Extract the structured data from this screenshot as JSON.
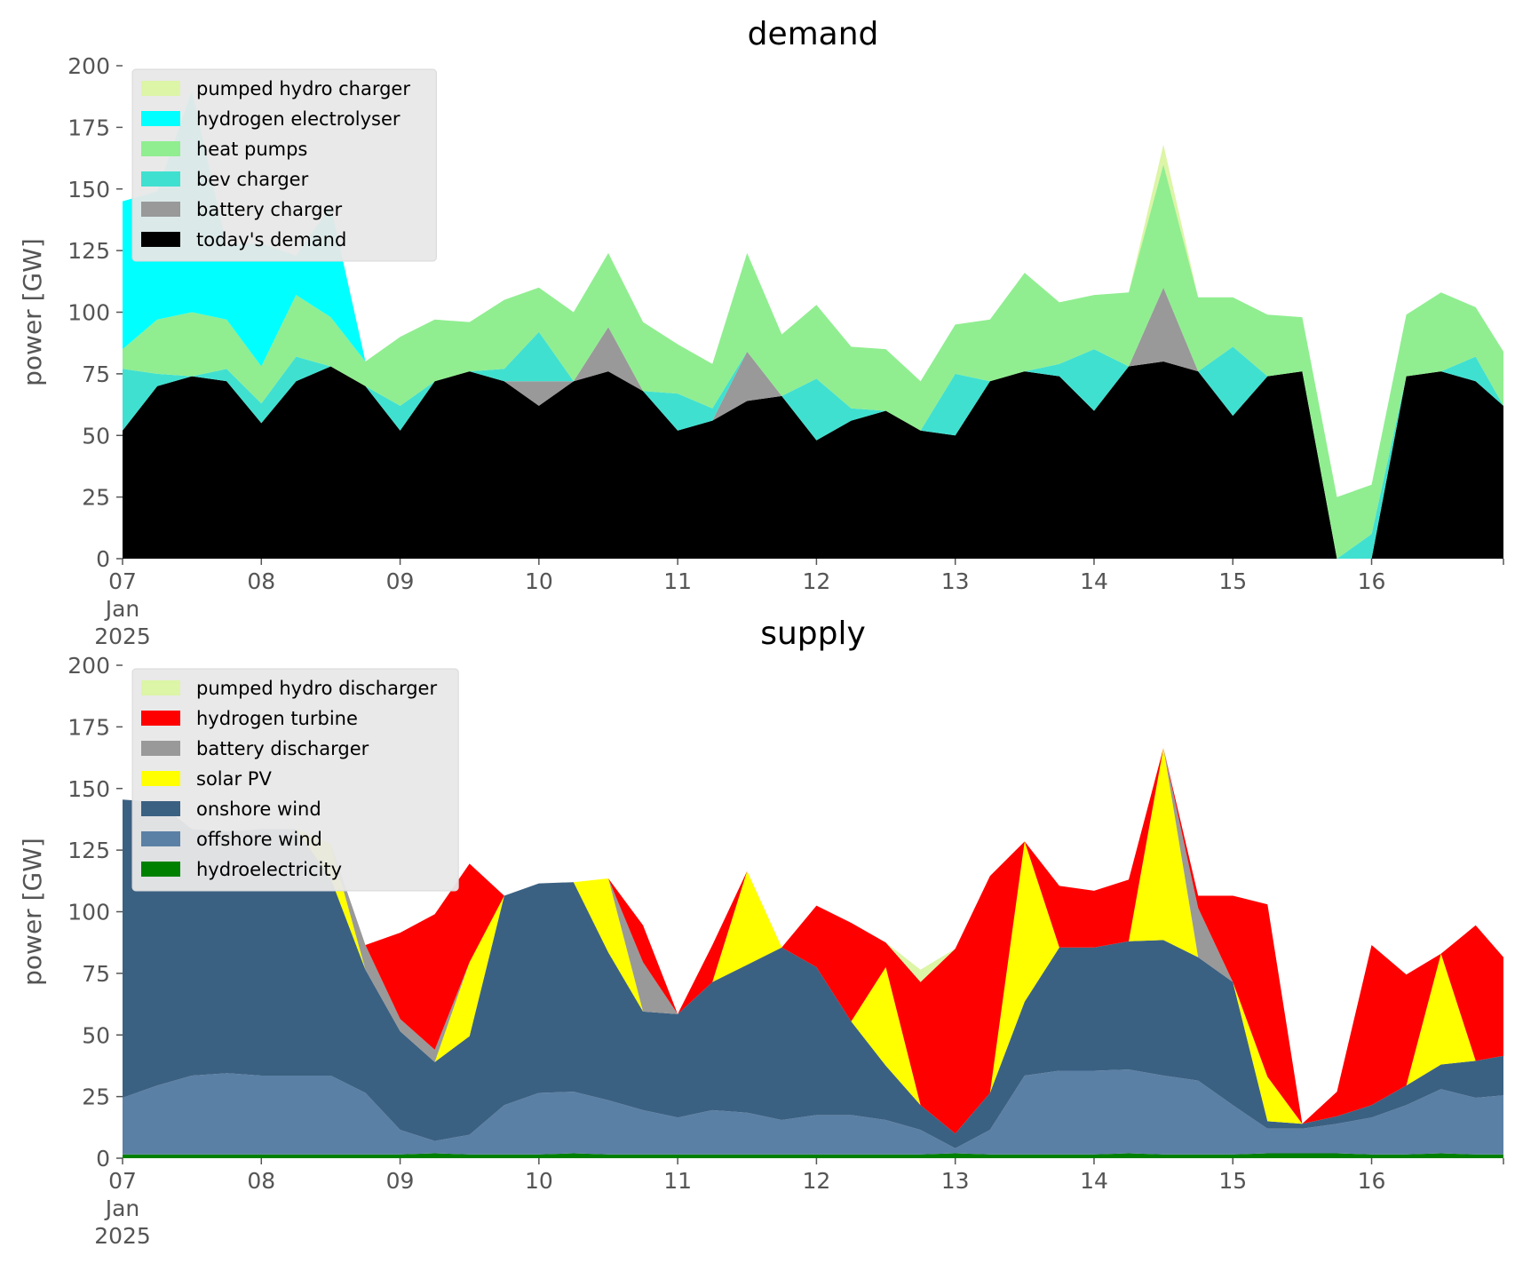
{
  "chart_data": [
    {
      "type": "area",
      "stacked": true,
      "title": "demand",
      "ylabel": "power [GW]",
      "ylim": [
        0,
        200
      ],
      "yticks": [
        "0",
        "25",
        "50",
        "75",
        "100",
        "125",
        "150",
        "175",
        "200"
      ],
      "xlim": [
        0,
        9.95
      ],
      "xticks": [
        {
          "value": 0,
          "lines": [
            "07",
            "Jan",
            "2025"
          ]
        },
        {
          "value": 1,
          "lines": [
            "08"
          ]
        },
        {
          "value": 2,
          "lines": [
            "09"
          ]
        },
        {
          "value": 3,
          "lines": [
            "10"
          ]
        },
        {
          "value": 4,
          "lines": [
            "11"
          ]
        },
        {
          "value": 5,
          "lines": [
            "12"
          ]
        },
        {
          "value": 6,
          "lines": [
            "13"
          ]
        },
        {
          "value": 7,
          "lines": [
            "14"
          ]
        },
        {
          "value": 8,
          "lines": [
            "15"
          ]
        },
        {
          "value": 9,
          "lines": [
            "16"
          ]
        }
      ],
      "legend_position": "top-left",
      "legend_order": [
        "pumped hydro charger",
        "hydrogen electrolyser",
        "heat pumps",
        "bev charger",
        "battery charger",
        "today's demand"
      ],
      "x": [
        0,
        0.25,
        0.5,
        0.75,
        1,
        1.25,
        1.5,
        1.75,
        2,
        2.25,
        2.5,
        2.75,
        3,
        3.25,
        3.5,
        3.75,
        4,
        4.25,
        4.5,
        4.75,
        5,
        5.25,
        5.5,
        5.75,
        6,
        6.25,
        6.5,
        6.75,
        7,
        7.25,
        7.5,
        7.75,
        8,
        8.25,
        8.5,
        8.75,
        9,
        9.25,
        9.5,
        9.75,
        9.95
      ],
      "series": [
        {
          "name": "today's demand",
          "color": "#000000",
          "values": [
            52,
            70,
            74,
            72,
            55,
            72,
            78,
            70,
            52,
            72,
            76,
            72,
            62,
            72,
            76,
            68,
            52,
            56,
            64,
            66,
            48,
            56,
            60,
            52,
            50,
            72,
            76,
            74,
            60,
            78,
            80,
            76,
            58,
            74,
            76,
            0,
            0,
            74,
            76,
            72,
            62
          ]
        },
        {
          "name": "battery charger",
          "color": "#999999",
          "values": [
            0,
            0,
            0,
            0,
            0,
            0,
            0,
            0,
            0,
            0,
            0,
            0,
            10,
            0,
            18,
            0,
            0,
            0,
            20,
            0,
            0,
            0,
            0,
            0,
            0,
            0,
            0,
            0,
            0,
            0,
            30,
            0,
            0,
            0,
            0,
            0,
            0,
            0,
            0,
            0,
            0
          ]
        },
        {
          "name": "bev charger",
          "color": "#40e0d0",
          "values": [
            25,
            5,
            0,
            5,
            8,
            10,
            0,
            0,
            10,
            0,
            0,
            5,
            20,
            0,
            0,
            0,
            15,
            5,
            0,
            0,
            25,
            5,
            0,
            0,
            25,
            0,
            0,
            5,
            25,
            0,
            0,
            0,
            28,
            0,
            0,
            0,
            10,
            0,
            0,
            10,
            0
          ]
        },
        {
          "name": "heat pumps",
          "color": "#90ee90",
          "values": [
            8,
            22,
            26,
            20,
            15,
            25,
            20,
            10,
            28,
            25,
            20,
            28,
            18,
            28,
            30,
            28,
            20,
            18,
            40,
            25,
            30,
            25,
            25,
            20,
            20,
            25,
            40,
            25,
            22,
            30,
            50,
            30,
            20,
            25,
            22,
            25,
            20,
            25,
            32,
            20,
            22
          ]
        },
        {
          "name": "hydrogen electrolyser",
          "color": "#00ffff",
          "values": [
            60,
            52,
            90,
            30,
            50,
            16,
            45,
            0,
            0,
            0,
            0,
            0,
            0,
            0,
            0,
            0,
            0,
            0,
            0,
            0,
            0,
            0,
            0,
            0,
            0,
            0,
            0,
            0,
            0,
            0,
            0,
            0,
            0,
            0,
            0,
            0,
            0,
            0,
            0,
            0,
            0
          ]
        },
        {
          "name": "pumped hydro charger",
          "color": "#dcf5a6",
          "values": [
            0,
            0,
            0,
            0,
            0,
            0,
            0,
            0,
            0,
            0,
            0,
            0,
            0,
            0,
            0,
            0,
            0,
            0,
            0,
            0,
            0,
            0,
            0,
            0,
            0,
            0,
            0,
            0,
            0,
            0,
            8,
            0,
            0,
            0,
            0,
            0,
            0,
            0,
            0,
            0,
            0
          ]
        }
      ]
    },
    {
      "type": "area",
      "stacked": true,
      "title": "supply",
      "ylabel": "power [GW]",
      "ylim": [
        0,
        200
      ],
      "yticks": [
        "0",
        "25",
        "50",
        "75",
        "100",
        "125",
        "150",
        "175",
        "200"
      ],
      "xlim": [
        0,
        9.95
      ],
      "xticks": [
        {
          "value": 0,
          "lines": [
            "07",
            "Jan",
            "2025"
          ]
        },
        {
          "value": 1,
          "lines": [
            "08"
          ]
        },
        {
          "value": 2,
          "lines": [
            "09"
          ]
        },
        {
          "value": 3,
          "lines": [
            "10"
          ]
        },
        {
          "value": 4,
          "lines": [
            "11"
          ]
        },
        {
          "value": 5,
          "lines": [
            "12"
          ]
        },
        {
          "value": 6,
          "lines": [
            "13"
          ]
        },
        {
          "value": 7,
          "lines": [
            "14"
          ]
        },
        {
          "value": 8,
          "lines": [
            "15"
          ]
        },
        {
          "value": 9,
          "lines": [
            "16"
          ]
        }
      ],
      "legend_position": "top-left",
      "legend_order": [
        "pumped hydro discharger",
        "hydrogen turbine",
        "battery discharger",
        "solar PV",
        "onshore wind",
        "offshore wind",
        "hydroelectricity"
      ],
      "x": [
        0,
        0.25,
        0.5,
        0.75,
        1,
        1.25,
        1.5,
        1.75,
        2,
        2.25,
        2.5,
        2.75,
        3,
        3.25,
        3.5,
        3.75,
        4,
        4.25,
        4.5,
        4.75,
        5,
        5.25,
        5.5,
        5.75,
        6,
        6.25,
        6.5,
        6.75,
        7,
        7.25,
        7.5,
        7.75,
        8,
        8.25,
        8.5,
        8.75,
        9,
        9.25,
        9.5,
        9.75,
        9.95
      ],
      "series": [
        {
          "name": "hydroelectricity",
          "color": "#008000",
          "values": [
            1.5,
            1.5,
            1.5,
            1.5,
            1.5,
            1.5,
            1.5,
            1.5,
            1.5,
            2,
            1.5,
            1.5,
            1.5,
            2,
            1.5,
            1.5,
            1.5,
            1.5,
            1.5,
            1.5,
            1.5,
            1.5,
            1.5,
            1.5,
            2,
            1.5,
            1.5,
            1.5,
            1.5,
            2,
            1.5,
            1.5,
            1.5,
            2,
            2,
            2,
            1.5,
            1.5,
            2,
            1.5,
            1.5
          ]
        },
        {
          "name": "offshore wind",
          "color": "#5b80a5",
          "values": [
            23,
            28,
            32,
            33,
            32,
            32,
            32,
            25,
            10,
            5,
            8,
            20,
            25,
            25,
            22,
            18,
            15,
            18,
            17,
            14,
            16,
            16,
            14,
            10,
            2,
            10,
            32,
            34,
            34,
            34,
            32,
            30,
            20,
            10,
            10,
            12,
            15,
            20,
            26,
            23,
            24
          ]
        },
        {
          "name": "onshore wind",
          "color": "#3b6182",
          "values": [
            121,
            115,
            100,
            98,
            100,
            100,
            80,
            50,
            40,
            32,
            40,
            85,
            85,
            85,
            60,
            40,
            42,
            52,
            60,
            70,
            60,
            38,
            22,
            10,
            6,
            15,
            30,
            50,
            50,
            52,
            55,
            50,
            50,
            3,
            2,
            3,
            5,
            8,
            10,
            15,
            16
          ]
        },
        {
          "name": "solar PV",
          "color": "#ffff00",
          "values": [
            0,
            0,
            0,
            0,
            0,
            0,
            14,
            0,
            0,
            0,
            30,
            0,
            0,
            0,
            30,
            0,
            0,
            0,
            38,
            0,
            0,
            0,
            40,
            0,
            0,
            0,
            65,
            0,
            0,
            0,
            78,
            0,
            0,
            18,
            0,
            0,
            0,
            0,
            45,
            0,
            0
          ]
        },
        {
          "name": "battery discharger",
          "color": "#999999",
          "values": [
            0,
            0,
            0,
            0,
            0,
            0,
            0,
            10,
            5,
            5,
            0,
            0,
            0,
            0,
            0,
            20,
            0,
            0,
            0,
            0,
            0,
            0,
            0,
            0,
            0,
            0,
            0,
            0,
            0,
            0,
            0,
            20,
            0,
            0,
            0,
            0,
            0,
            0,
            0,
            0,
            0
          ]
        },
        {
          "name": "hydrogen turbine",
          "color": "#ff0000",
          "values": [
            0,
            0,
            0,
            0,
            0,
            0,
            0,
            0,
            35,
            55,
            40,
            0,
            0,
            0,
            0,
            15,
            0,
            15,
            0,
            0,
            25,
            40,
            10,
            50,
            75,
            88,
            0,
            25,
            23,
            25,
            0,
            5,
            35,
            70,
            0,
            10,
            65,
            45,
            0,
            55,
            40
          ]
        },
        {
          "name": "pumped hydro discharger",
          "color": "#dcf5a6",
          "values": [
            0,
            0,
            0,
            0,
            0,
            0,
            0,
            0,
            0,
            0,
            0,
            0,
            0,
            0,
            0,
            0,
            0,
            0,
            0,
            0,
            0,
            0,
            0,
            5,
            0,
            0,
            0,
            0,
            0,
            0,
            0,
            0,
            0,
            0,
            0,
            0,
            0,
            0,
            0,
            0,
            0
          ]
        }
      ]
    }
  ]
}
